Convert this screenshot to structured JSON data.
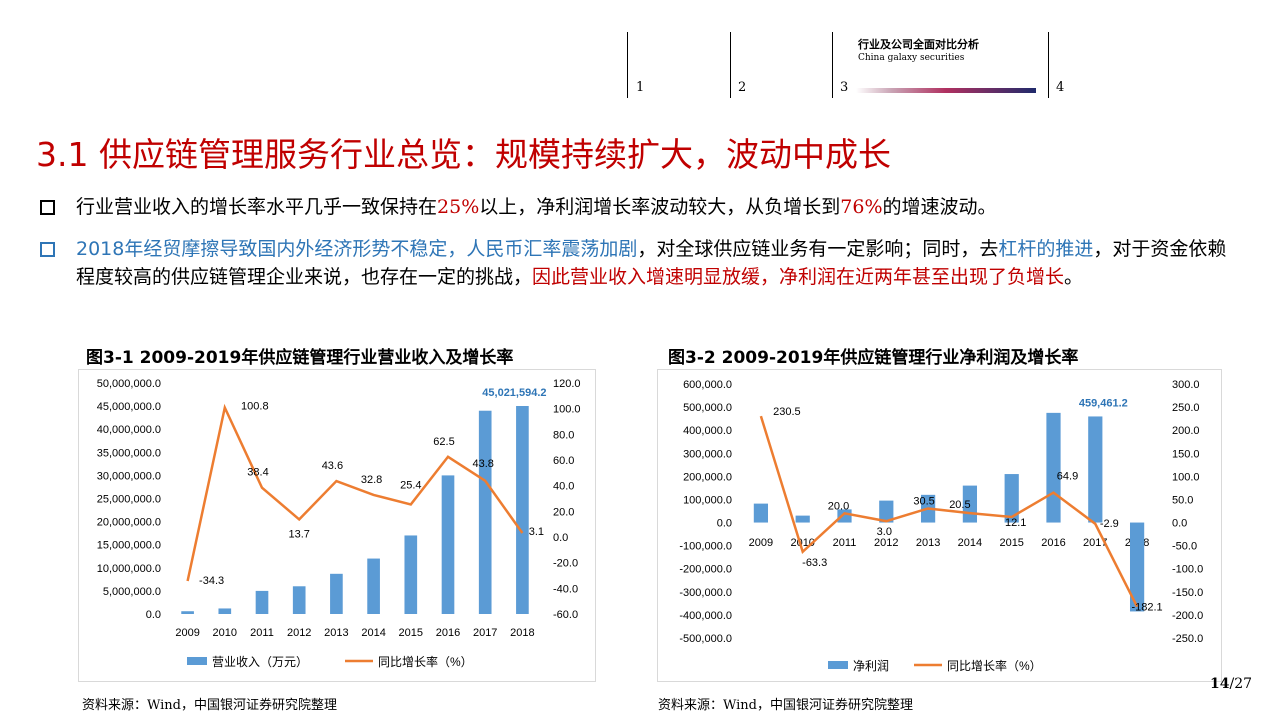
{
  "header": {
    "nav": [
      "1",
      "2",
      "3",
      "4"
    ],
    "brand_cn": "行业及公司全面对比分析",
    "brand_en": "China galaxy securities"
  },
  "title": "3.1 供应链管理服务行业总览：规模持续扩大，波动中成长",
  "bullets": {
    "b1": {
      "p1": "行业营业收入的增长率水平几乎一致保持在",
      "v1": "25%",
      "p2": "以上，净利润增长率波动较大，从负增长到",
      "v2": "76%",
      "p3": "的增速波动。"
    },
    "b2": {
      "p1": "2018年经贸摩擦导致国内外经济形势不稳定，人民币汇率震荡加剧",
      "p2": "，对全球供应链业务有一定影响；同时，去",
      "p3": "杠杆的推进",
      "p4": "，对于资金依赖程度较高的供应链管理企业来说，也存在一定的挑战，",
      "p5": "因此营业收入增速明显放缓，净利润在近两年甚至出现了负增长",
      "p6": "。"
    }
  },
  "colors": {
    "bar": "#5b9bd5",
    "line": "#ed7d31",
    "title_red": "#c00000",
    "accent_blue": "#2e75b6"
  },
  "chart_data": [
    {
      "type": "bar",
      "title": "图3-1 2009-2019年供应链管理行业营业收入及增长率",
      "categories": [
        "2009",
        "2010",
        "2011",
        "2012",
        "2013",
        "2014",
        "2015",
        "2016",
        "2017",
        "2018"
      ],
      "series": [
        {
          "name": "营业收入（万元）",
          "type": "bar",
          "axis": "left",
          "values": [
            600000,
            1200000,
            5000000,
            6000000,
            8700000,
            12000000,
            17000000,
            30000000,
            44000000,
            45021594.2
          ],
          "labels": [
            "",
            "",
            "",
            "",
            "",
            "",
            "",
            "",
            "",
            "45,021,594.2"
          ]
        },
        {
          "name": "同比增长率（%）",
          "type": "line",
          "axis": "right",
          "values": [
            -34.3,
            100.8,
            38.4,
            13.7,
            43.6,
            32.8,
            25.4,
            62.5,
            43.8,
            3.1
          ],
          "labels": [
            "-34.3",
            "100.8",
            "38.4",
            "13.7",
            "43.6",
            "32.8",
            "25.4",
            "62.5",
            "43.8",
            "3.1"
          ]
        }
      ],
      "y_left": {
        "min": 0,
        "max": 50000000,
        "ticks": [
          "0.0",
          "5,000,000.0",
          "10,000,000.0",
          "15,000,000.0",
          "20,000,000.0",
          "25,000,000.0",
          "30,000,000.0",
          "35,000,000.0",
          "40,000,000.0",
          "45,000,000.0",
          "50,000,000.0"
        ]
      },
      "y_right": {
        "min": -60,
        "max": 120,
        "ticks": [
          "-60.0",
          "-40.0",
          "-20.0",
          "0.0",
          "20.0",
          "40.0",
          "60.0",
          "80.0",
          "100.0",
          "120.0"
        ]
      },
      "legend": "bottom"
    },
    {
      "type": "bar",
      "title": "图3-2 2009-2019年供应链管理行业净利润及增长率",
      "categories": [
        "2009",
        "2010",
        "2011",
        "2012",
        "2013",
        "2014",
        "2015",
        "2016",
        "2017",
        "2018"
      ],
      "series": [
        {
          "name": "净利润",
          "type": "bar",
          "axis": "left",
          "values": [
            82000,
            30000,
            57000,
            95000,
            120000,
            160000,
            210000,
            475000,
            459461.2,
            -385000
          ],
          "labels": [
            "",
            "",
            "",
            "",
            "",
            "",
            "",
            "",
            "459,461.2",
            ""
          ]
        },
        {
          "name": "同比增长率（%）",
          "type": "line",
          "axis": "right",
          "values": [
            230.5,
            -63.3,
            20.0,
            3.0,
            30.5,
            20.5,
            12.1,
            64.9,
            -2.9,
            -182.1
          ],
          "labels": [
            "230.5",
            "-63.3",
            "20.0",
            "3.0",
            "30.5",
            "20.5",
            "12.1",
            "64.9",
            "-2.9",
            "-182.1"
          ]
        }
      ],
      "y_left": {
        "min": -500000,
        "max": 600000,
        "ticks": [
          "-500,000.0",
          "-400,000.0",
          "-300,000.0",
          "-200,000.0",
          "-100,000.0",
          "0.0",
          "100,000.0",
          "200,000.0",
          "300,000.0",
          "400,000.0",
          "500,000.0",
          "600,000.0"
        ]
      },
      "y_right": {
        "min": -250,
        "max": 300,
        "ticks": [
          "-250.0",
          "-200.0",
          "-150.0",
          "-100.0",
          "-50.0",
          "0.0",
          "50.0",
          "100.0",
          "150.0",
          "200.0",
          "250.0",
          "300.0"
        ]
      },
      "legend": "bottom"
    }
  ],
  "source1": "资料来源：Wind，中国银河证券研究院整理",
  "source2": "资料来源：Wind，中国银河证券研究院整理",
  "page": {
    "current": "14",
    "total": "/27"
  }
}
